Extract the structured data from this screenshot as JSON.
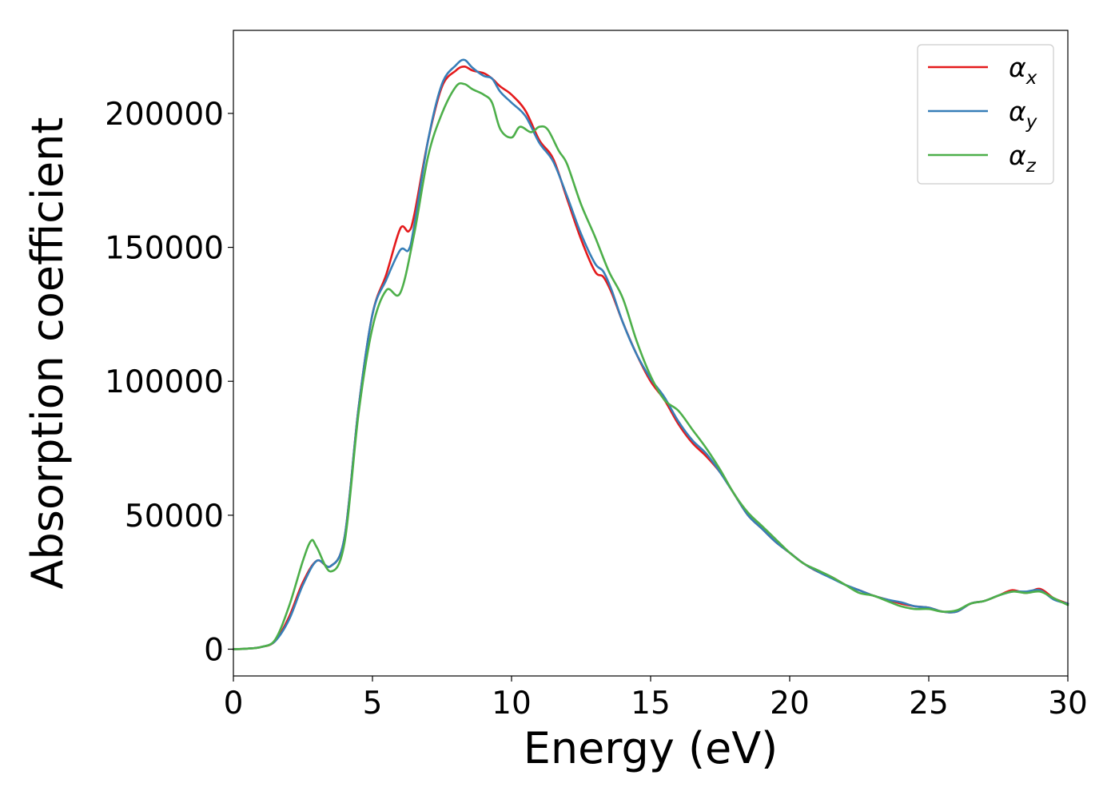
{
  "chart_data": {
    "type": "line",
    "title": "",
    "xlabel": "Energy (eV)",
    "ylabel": "Absorption coefficient",
    "xlim": [
      0,
      30
    ],
    "ylim": [
      -10000,
      231000
    ],
    "xticks": [
      0,
      5,
      10,
      15,
      20,
      25,
      30
    ],
    "xtick_labels": [
      "0",
      "5",
      "10",
      "15",
      "20",
      "25",
      "30"
    ],
    "yticks": [
      0,
      50000,
      100000,
      150000,
      200000
    ],
    "ytick_labels": [
      "0",
      "50000",
      "100000",
      "150000",
      "200000"
    ],
    "grid": false,
    "legend_position": "top-right",
    "series": [
      {
        "name": "αx",
        "legend_base": "α",
        "legend_sub": "x",
        "color": "#e41a1c",
        "points": [
          [
            0,
            0
          ],
          [
            0.5,
            200
          ],
          [
            1,
            800
          ],
          [
            1.5,
            3000
          ],
          [
            2,
            12000
          ],
          [
            2.5,
            25000
          ],
          [
            3,
            33000
          ],
          [
            3.5,
            31000
          ],
          [
            4,
            42000
          ],
          [
            4.5,
            90000
          ],
          [
            5,
            125000
          ],
          [
            5.5,
            140000
          ],
          [
            6,
            157000
          ],
          [
            6.3,
            156000
          ],
          [
            6.5,
            162000
          ],
          [
            7,
            190000
          ],
          [
            7.5,
            210000
          ],
          [
            8,
            216000
          ],
          [
            8.3,
            217500
          ],
          [
            8.6,
            216000
          ],
          [
            9,
            215000
          ],
          [
            9.3,
            213000
          ],
          [
            9.6,
            210000
          ],
          [
            10,
            207000
          ],
          [
            10.5,
            201000
          ],
          [
            11,
            190000
          ],
          [
            11.5,
            183000
          ],
          [
            12,
            168000
          ],
          [
            12.5,
            153000
          ],
          [
            13,
            141000
          ],
          [
            13.3,
            139000
          ],
          [
            13.6,
            133000
          ],
          [
            14,
            122000
          ],
          [
            14.5,
            110000
          ],
          [
            15,
            100000
          ],
          [
            15.5,
            93000
          ],
          [
            16,
            84000
          ],
          [
            16.5,
            77000
          ],
          [
            17,
            72000
          ],
          [
            17.5,
            66000
          ],
          [
            18,
            58000
          ],
          [
            18.5,
            50000
          ],
          [
            19,
            45000
          ],
          [
            19.5,
            40000
          ],
          [
            20,
            36000
          ],
          [
            20.5,
            32000
          ],
          [
            21,
            29000
          ],
          [
            21.5,
            27000
          ],
          [
            22,
            24000
          ],
          [
            22.5,
            22000
          ],
          [
            23,
            20000
          ],
          [
            23.5,
            18500
          ],
          [
            24,
            17000
          ],
          [
            24.5,
            16000
          ],
          [
            25,
            15500
          ],
          [
            25.5,
            14000
          ],
          [
            26,
            14000
          ],
          [
            26.5,
            17000
          ],
          [
            27,
            18000
          ],
          [
            27.5,
            20000
          ],
          [
            28,
            22000
          ],
          [
            28.5,
            21000
          ],
          [
            29,
            22500
          ],
          [
            29.5,
            19000
          ],
          [
            30,
            17000
          ]
        ]
      },
      {
        "name": "αy",
        "legend_base": "α",
        "legend_sub": "y",
        "color": "#377eb8",
        "points": [
          [
            0,
            0
          ],
          [
            0.5,
            200
          ],
          [
            1,
            800
          ],
          [
            1.5,
            3000
          ],
          [
            2,
            11000
          ],
          [
            2.5,
            24000
          ],
          [
            3,
            33000
          ],
          [
            3.5,
            31000
          ],
          [
            4,
            42000
          ],
          [
            4.5,
            90000
          ],
          [
            5,
            125000
          ],
          [
            5.5,
            138000
          ],
          [
            6,
            149000
          ],
          [
            6.3,
            149000
          ],
          [
            6.5,
            158000
          ],
          [
            7,
            190000
          ],
          [
            7.5,
            211000
          ],
          [
            8,
            218000
          ],
          [
            8.3,
            220000
          ],
          [
            8.6,
            217000
          ],
          [
            9,
            214000
          ],
          [
            9.3,
            213000
          ],
          [
            9.6,
            208000
          ],
          [
            10,
            204000
          ],
          [
            10.5,
            199000
          ],
          [
            11,
            189000
          ],
          [
            11.5,
            182000
          ],
          [
            12,
            169000
          ],
          [
            12.5,
            155000
          ],
          [
            13,
            144000
          ],
          [
            13.3,
            141000
          ],
          [
            13.6,
            134000
          ],
          [
            14,
            122000
          ],
          [
            14.5,
            110000
          ],
          [
            15,
            101000
          ],
          [
            15.5,
            94000
          ],
          [
            16,
            85000
          ],
          [
            16.5,
            78000
          ],
          [
            17,
            73000
          ],
          [
            17.5,
            66000
          ],
          [
            18,
            58000
          ],
          [
            18.5,
            50000
          ],
          [
            19,
            45000
          ],
          [
            19.5,
            40000
          ],
          [
            20,
            36000
          ],
          [
            20.5,
            32000
          ],
          [
            21,
            29000
          ],
          [
            21.5,
            26500
          ],
          [
            22,
            24000
          ],
          [
            22.5,
            22000
          ],
          [
            23,
            20000
          ],
          [
            23.5,
            18500
          ],
          [
            24,
            17500
          ],
          [
            24.5,
            16000
          ],
          [
            25,
            15500
          ],
          [
            25.5,
            14000
          ],
          [
            26,
            14000
          ],
          [
            26.5,
            17000
          ],
          [
            27,
            18000
          ],
          [
            27.5,
            20000
          ],
          [
            28,
            21500
          ],
          [
            28.5,
            21500
          ],
          [
            29,
            22000
          ],
          [
            29.5,
            18500
          ],
          [
            30,
            17000
          ]
        ]
      },
      {
        "name": "αz",
        "legend_base": "α",
        "legend_sub": "z",
        "color": "#4daf4a",
        "points": [
          [
            0,
            0
          ],
          [
            0.5,
            200
          ],
          [
            1,
            800
          ],
          [
            1.5,
            3500
          ],
          [
            2,
            16000
          ],
          [
            2.5,
            33000
          ],
          [
            2.8,
            40500
          ],
          [
            3,
            38000
          ],
          [
            3.5,
            29000
          ],
          [
            4,
            40000
          ],
          [
            4.5,
            88000
          ],
          [
            5,
            120000
          ],
          [
            5.5,
            134000
          ],
          [
            6,
            133000
          ],
          [
            6.5,
            155000
          ],
          [
            7,
            184000
          ],
          [
            7.5,
            200000
          ],
          [
            8,
            210000
          ],
          [
            8.3,
            211000
          ],
          [
            8.6,
            209000
          ],
          [
            9,
            207000
          ],
          [
            9.3,
            204000
          ],
          [
            9.6,
            194000
          ],
          [
            10,
            191000
          ],
          [
            10.3,
            195000
          ],
          [
            10.7,
            193000
          ],
          [
            11,
            195000
          ],
          [
            11.3,
            194000
          ],
          [
            11.7,
            186000
          ],
          [
            12,
            181000
          ],
          [
            12.5,
            166000
          ],
          [
            13,
            154000
          ],
          [
            13.5,
            141000
          ],
          [
            14,
            131000
          ],
          [
            14.5,
            115000
          ],
          [
            15,
            102000
          ],
          [
            15.5,
            93000
          ],
          [
            16,
            89000
          ],
          [
            16.5,
            82000
          ],
          [
            17,
            75000
          ],
          [
            17.5,
            67000
          ],
          [
            18,
            58000
          ],
          [
            18.5,
            51000
          ],
          [
            19,
            46000
          ],
          [
            19.5,
            41000
          ],
          [
            20,
            36000
          ],
          [
            20.5,
            32000
          ],
          [
            21,
            29500
          ],
          [
            21.5,
            27000
          ],
          [
            22,
            24000
          ],
          [
            22.5,
            21000
          ],
          [
            23,
            20000
          ],
          [
            23.5,
            18000
          ],
          [
            24,
            16000
          ],
          [
            24.5,
            15000
          ],
          [
            25,
            15000
          ],
          [
            25.5,
            14000
          ],
          [
            26,
            14500
          ],
          [
            26.5,
            17000
          ],
          [
            27,
            18000
          ],
          [
            27.5,
            20000
          ],
          [
            28,
            21500
          ],
          [
            28.5,
            21000
          ],
          [
            29,
            21500
          ],
          [
            29.5,
            19000
          ],
          [
            30,
            16500
          ]
        ]
      }
    ]
  }
}
